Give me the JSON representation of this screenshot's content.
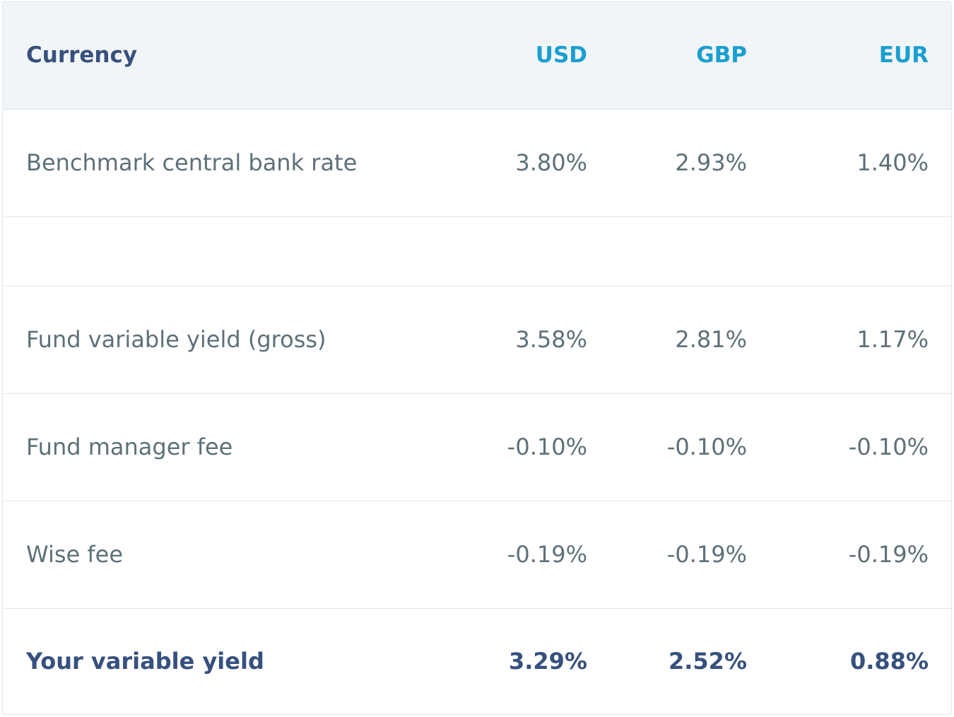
{
  "table": {
    "header": {
      "label": "Currency",
      "currencies": [
        "USD",
        "GBP",
        "EUR"
      ]
    },
    "rows": [
      {
        "label": "Benchmark central bank rate",
        "values": [
          "3.80%",
          "2.93%",
          "1.40%"
        ]
      },
      {
        "label": "",
        "values": [
          "",
          "",
          ""
        ]
      },
      {
        "label": "Fund variable yield (gross)",
        "values": [
          "3.58%",
          "2.81%",
          "1.17%"
        ]
      },
      {
        "label": "Fund manager fee",
        "values": [
          "-0.10%",
          "-0.10%",
          "-0.10%"
        ]
      },
      {
        "label": "Wise fee",
        "values": [
          "-0.19%",
          "-0.19%",
          "-0.19%"
        ]
      },
      {
        "label": "Your variable yield",
        "values": [
          "3.29%",
          "2.52%",
          "0.88%"
        ]
      }
    ]
  },
  "colors": {
    "header_background": "#f2f5f7",
    "header_label": "#37517e",
    "header_currency": "#1a9fd0",
    "body_text": "#5d7079",
    "total_text": "#37517e",
    "border": "#e2e6ea"
  }
}
